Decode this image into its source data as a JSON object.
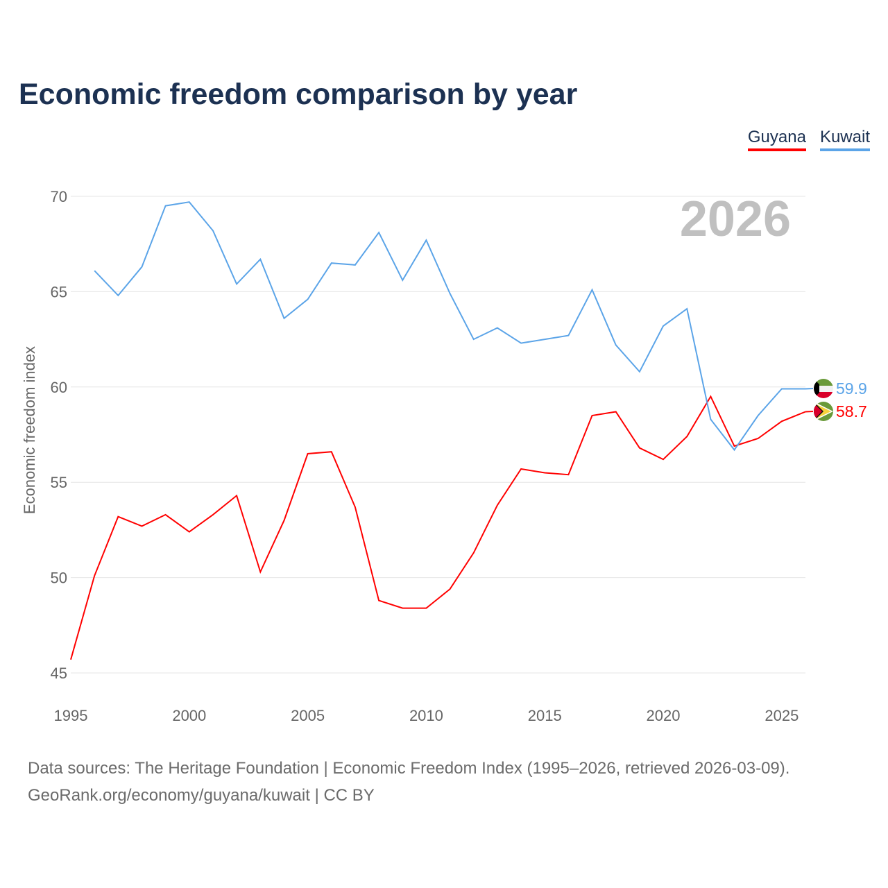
{
  "title": "Economic freedom comparison by year",
  "footer": {
    "line1": "Data sources: The Heritage Foundation | Economic Freedom Index (1995–2026, retrieved 2026-03-09).",
    "line2": "GeoRank.org/economy/guyana/kuwait | CC BY"
  },
  "chart_data": {
    "type": "line",
    "title": "Economic freedom comparison by year",
    "year_label": "2026",
    "xlabel": "",
    "ylabel": "Economic freedom index",
    "xlim": [
      1995,
      2026
    ],
    "ylim": [
      45,
      70
    ],
    "xticks": [
      1995,
      2000,
      2005,
      2010,
      2015,
      2020,
      2025
    ],
    "yticks": [
      45,
      50,
      55,
      60,
      65,
      70
    ],
    "grid": true,
    "legend_position": "top-right",
    "series": [
      {
        "name": "Guyana",
        "color": "#ff0000",
        "end_label": "58.7",
        "flag": "guyana-flag",
        "x": [
          1995,
          1996,
          1997,
          1998,
          1999,
          2000,
          2001,
          2002,
          2003,
          2004,
          2005,
          2006,
          2007,
          2008,
          2009,
          2010,
          2011,
          2012,
          2013,
          2014,
          2015,
          2016,
          2017,
          2018,
          2019,
          2020,
          2021,
          2022,
          2023,
          2024,
          2025,
          2026
        ],
        "values": [
          45.7,
          50.1,
          53.2,
          52.7,
          53.3,
          52.4,
          53.3,
          54.3,
          50.3,
          53.0,
          56.5,
          56.6,
          53.7,
          48.8,
          48.4,
          48.4,
          49.4,
          51.3,
          53.8,
          55.7,
          55.5,
          55.4,
          58.5,
          58.7,
          56.8,
          56.2,
          57.4,
          59.5,
          56.9,
          57.3,
          58.2,
          58.7
        ]
      },
      {
        "name": "Kuwait",
        "color": "#5ba4e8",
        "end_label": "59.9",
        "flag": "kuwait-flag",
        "x": [
          1996,
          1997,
          1998,
          1999,
          2000,
          2001,
          2002,
          2003,
          2004,
          2005,
          2006,
          2007,
          2008,
          2009,
          2010,
          2011,
          2012,
          2013,
          2014,
          2015,
          2016,
          2017,
          2018,
          2019,
          2020,
          2021,
          2022,
          2023,
          2024,
          2025,
          2026
        ],
        "values": [
          66.1,
          64.8,
          66.3,
          69.5,
          69.7,
          68.2,
          65.4,
          66.7,
          63.6,
          64.6,
          66.5,
          66.4,
          68.1,
          65.6,
          67.7,
          64.9,
          62.5,
          63.1,
          62.3,
          62.5,
          62.7,
          65.1,
          62.2,
          60.8,
          63.2,
          64.1,
          58.3,
          56.7,
          58.5,
          59.9,
          59.9
        ]
      }
    ]
  }
}
